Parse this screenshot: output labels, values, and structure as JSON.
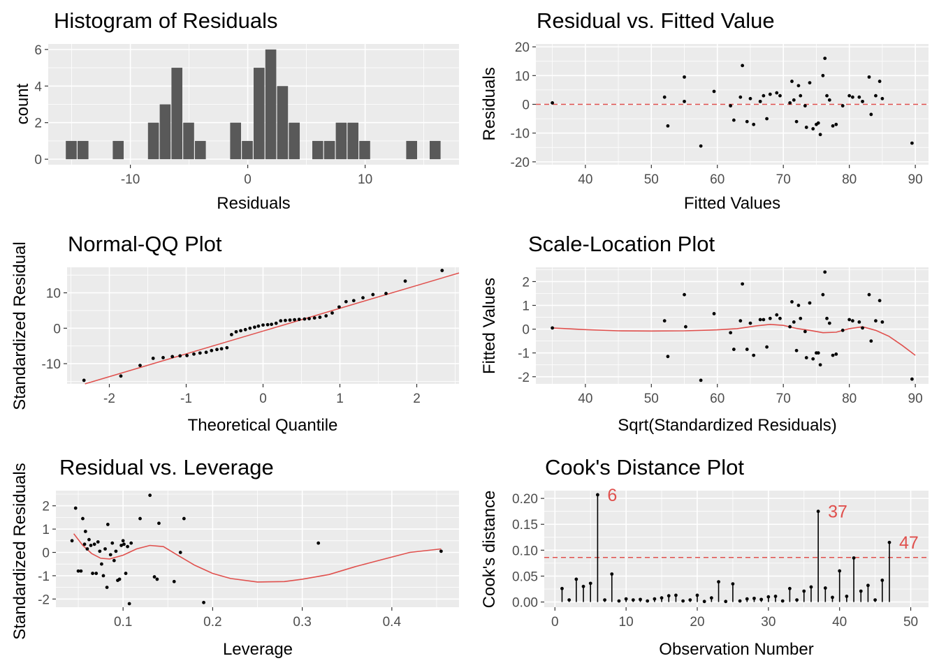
{
  "chart_data": [
    {
      "id": "hist",
      "type": "bar",
      "title": "Histogram of Residuals",
      "xlabel": "Residuals",
      "ylabel": "count",
      "xlim": [
        -17,
        18
      ],
      "ylim": [
        -0.3,
        6.3
      ],
      "xticks": [
        -10,
        0,
        10
      ],
      "yticks": [
        0,
        2,
        4,
        6
      ],
      "bin_width": 1.0,
      "bar_color": "#595959",
      "bins": [
        {
          "x": -15,
          "count": 1
        },
        {
          "x": -14,
          "count": 1
        },
        {
          "x": -11,
          "count": 1
        },
        {
          "x": -8,
          "count": 2
        },
        {
          "x": -7,
          "count": 3
        },
        {
          "x": -6,
          "count": 5
        },
        {
          "x": -5,
          "count": 2
        },
        {
          "x": -4,
          "count": 1
        },
        {
          "x": -1,
          "count": 2
        },
        {
          "x": 0,
          "count": 1
        },
        {
          "x": 1,
          "count": 5
        },
        {
          "x": 2,
          "count": 6
        },
        {
          "x": 3,
          "count": 4
        },
        {
          "x": 4,
          "count": 2
        },
        {
          "x": 6,
          "count": 1
        },
        {
          "x": 7,
          "count": 1
        },
        {
          "x": 8,
          "count": 2
        },
        {
          "x": 9,
          "count": 2
        },
        {
          "x": 10,
          "count": 1
        },
        {
          "x": 14,
          "count": 1
        },
        {
          "x": 16,
          "count": 1
        }
      ]
    },
    {
      "id": "resfit",
      "type": "scatter",
      "title": "Residual vs. Fitted Value",
      "xlabel": "Fitted Values",
      "ylabel": "Residuals",
      "xlim": [
        32.5,
        92
      ],
      "ylim": [
        -21,
        21
      ],
      "xticks": [
        40,
        50,
        60,
        70,
        80,
        90
      ],
      "yticks": [
        -20,
        -10,
        0,
        10,
        20
      ],
      "reference_line": {
        "y": 0,
        "color": "#e0504d",
        "style": "dashed"
      },
      "points": [
        [
          35,
          0.5
        ],
        [
          52,
          2.5
        ],
        [
          52.5,
          -7.5
        ],
        [
          55,
          9.5
        ],
        [
          55,
          1
        ],
        [
          57.5,
          -14.5
        ],
        [
          59.5,
          4.5
        ],
        [
          62,
          -0.5
        ],
        [
          62.5,
          -5.5
        ],
        [
          63.5,
          2.5
        ],
        [
          63.8,
          13.5
        ],
        [
          64.5,
          -6
        ],
        [
          65,
          2
        ],
        [
          65.5,
          -7
        ],
        [
          66.5,
          1
        ],
        [
          67,
          3
        ],
        [
          67.5,
          -5
        ],
        [
          68,
          3.5
        ],
        [
          69,
          4
        ],
        [
          69.5,
          3
        ],
        [
          71,
          0.5
        ],
        [
          71.3,
          8
        ],
        [
          71.6,
          1.5
        ],
        [
          72,
          -6
        ],
        [
          72.3,
          6.5
        ],
        [
          72.6,
          3
        ],
        [
          73.3,
          -0.5
        ],
        [
          73.5,
          -8
        ],
        [
          74,
          7.5
        ],
        [
          74.5,
          -8.5
        ],
        [
          75,
          -7
        ],
        [
          75.3,
          -6.5
        ],
        [
          75.6,
          -10.5
        ],
        [
          76,
          10
        ],
        [
          76.3,
          16
        ],
        [
          76.6,
          3
        ],
        [
          77,
          1.5
        ],
        [
          77.5,
          -7.5
        ],
        [
          78,
          -7
        ],
        [
          79,
          -0.5
        ],
        [
          80,
          3
        ],
        [
          80.5,
          2.5
        ],
        [
          81.5,
          2.5
        ],
        [
          82,
          1
        ],
        [
          83,
          9.5
        ],
        [
          83.3,
          -3.5
        ],
        [
          84,
          3
        ],
        [
          84.6,
          8
        ],
        [
          85,
          2
        ],
        [
          89.5,
          -13.5
        ]
      ]
    },
    {
      "id": "qq",
      "type": "scatter",
      "title": "Normal-QQ Plot",
      "xlabel": "Theoretical Quantile",
      "ylabel": "Standardized Residual",
      "xlim": [
        -2.55,
        2.55
      ],
      "ylim": [
        -15.7,
        17.2
      ],
      "xticks": [
        -2,
        -1,
        0,
        1,
        2
      ],
      "yticks": [
        -10,
        0,
        10
      ],
      "fit_line": {
        "x": [
          -2.55,
          2.55
        ],
        "y": [
          -17.2,
          15.6
        ],
        "color": "#e0504d"
      },
      "points": [
        [
          -2.33,
          -14.7
        ],
        [
          -1.85,
          -13.5
        ],
        [
          -1.6,
          -10.5
        ],
        [
          -1.43,
          -8.5
        ],
        [
          -1.3,
          -8.3
        ],
        [
          -1.18,
          -8.0
        ],
        [
          -1.08,
          -7.8
        ],
        [
          -0.99,
          -7.7
        ],
        [
          -0.9,
          -7.3
        ],
        [
          -0.82,
          -7.0
        ],
        [
          -0.74,
          -6.8
        ],
        [
          -0.67,
          -6.3
        ],
        [
          -0.6,
          -6.0
        ],
        [
          -0.54,
          -5.8
        ],
        [
          -0.47,
          -5.5
        ],
        [
          -0.41,
          -1.8
        ],
        [
          -0.35,
          -1.0
        ],
        [
          -0.29,
          -0.7
        ],
        [
          -0.23,
          -0.4
        ],
        [
          -0.17,
          0.0
        ],
        [
          -0.11,
          0.3
        ],
        [
          -0.06,
          0.6
        ],
        [
          0.0,
          0.9
        ],
        [
          0.06,
          1.0
        ],
        [
          0.11,
          1.1
        ],
        [
          0.17,
          1.4
        ],
        [
          0.23,
          2.1
        ],
        [
          0.29,
          2.2
        ],
        [
          0.35,
          2.3
        ],
        [
          0.41,
          2.4
        ],
        [
          0.47,
          2.5
        ],
        [
          0.54,
          2.6
        ],
        [
          0.6,
          2.7
        ],
        [
          0.67,
          2.9
        ],
        [
          0.74,
          3.1
        ],
        [
          0.82,
          3.5
        ],
        [
          0.9,
          4.3
        ],
        [
          0.99,
          6.0
        ],
        [
          1.08,
          7.5
        ],
        [
          1.18,
          7.8
        ],
        [
          1.3,
          8.6
        ],
        [
          1.43,
          9.5
        ],
        [
          1.6,
          9.8
        ],
        [
          1.85,
          13.3
        ],
        [
          2.33,
          16.3
        ]
      ]
    },
    {
      "id": "scaleloc",
      "type": "scatter",
      "title": "Scale-Location Plot",
      "xlabel": "Sqrt(Standardized Residuals)",
      "ylabel": "Fitted Values",
      "xlim": [
        32.5,
        92
      ],
      "ylim": [
        -2.3,
        2.6
      ],
      "xticks": [
        40,
        50,
        60,
        70,
        80,
        90
      ],
      "yticks": [
        -2,
        -1,
        0,
        1,
        2
      ],
      "smooth_color": "#e0504d",
      "smooth": [
        [
          35,
          0.05
        ],
        [
          40,
          -0.02
        ],
        [
          45,
          -0.07
        ],
        [
          50,
          -0.08
        ],
        [
          55,
          -0.07
        ],
        [
          60,
          -0.03
        ],
        [
          63,
          0.02
        ],
        [
          66,
          0.14
        ],
        [
          68,
          0.2
        ],
        [
          70,
          0.16
        ],
        [
          72,
          0.03
        ],
        [
          74,
          -0.05
        ],
        [
          76,
          -0.15
        ],
        [
          78,
          -0.13
        ],
        [
          80,
          0.02
        ],
        [
          82,
          0.1
        ],
        [
          84,
          -0.05
        ],
        [
          86,
          -0.3
        ],
        [
          88,
          -0.68
        ],
        [
          90,
          -1.1
        ]
      ],
      "points": [
        [
          35,
          0.05
        ],
        [
          52,
          0.35
        ],
        [
          52.5,
          -1.15
        ],
        [
          55,
          1.45
        ],
        [
          55.2,
          0.1
        ],
        [
          57.5,
          -2.15
        ],
        [
          59.5,
          0.65
        ],
        [
          62,
          -0.15
        ],
        [
          62.5,
          -0.85
        ],
        [
          63.5,
          0.35
        ],
        [
          63.8,
          1.9
        ],
        [
          64.5,
          -0.85
        ],
        [
          65,
          0.25
        ],
        [
          65.5,
          -1.1
        ],
        [
          66.5,
          0.4
        ],
        [
          67,
          0.4
        ],
        [
          67.5,
          -0.75
        ],
        [
          68,
          0.45
        ],
        [
          69,
          0.6
        ],
        [
          69.5,
          0.45
        ],
        [
          71,
          0.1
        ],
        [
          71.3,
          1.15
        ],
        [
          71.6,
          0.3
        ],
        [
          72,
          -0.9
        ],
        [
          72.3,
          1.0
        ],
        [
          72.6,
          0.45
        ],
        [
          73.3,
          -0.1
        ],
        [
          73.5,
          -1.2
        ],
        [
          74,
          1.1
        ],
        [
          74.5,
          -1.25
        ],
        [
          75,
          -1.0
        ],
        [
          75.3,
          -1.0
        ],
        [
          75.6,
          -1.5
        ],
        [
          76,
          1.45
        ],
        [
          76.3,
          2.4
        ],
        [
          76.6,
          0.45
        ],
        [
          77,
          0.25
        ],
        [
          77.5,
          -1.1
        ],
        [
          78,
          -1.05
        ],
        [
          79,
          -0.05
        ],
        [
          80,
          0.4
        ],
        [
          80.5,
          0.35
        ],
        [
          81.5,
          0.3
        ],
        [
          82,
          0.05
        ],
        [
          83,
          1.45
        ],
        [
          83.3,
          -0.5
        ],
        [
          84,
          0.35
        ],
        [
          84.6,
          1.2
        ],
        [
          85,
          0.3
        ],
        [
          89.5,
          -2.1
        ]
      ]
    },
    {
      "id": "resleverage",
      "type": "scatter",
      "title": "Residual vs. Leverage",
      "xlabel": "Leverage",
      "ylabel": "Standardized Residuals",
      "xlim": [
        0.025,
        0.475
      ],
      "ylim": [
        -2.35,
        2.65
      ],
      "xticks": [
        0.1,
        0.2,
        0.3,
        0.4
      ],
      "yticks": [
        -2,
        -1,
        0,
        1,
        2
      ],
      "smooth_color": "#e0504d",
      "smooth": [
        [
          0.045,
          0.8
        ],
        [
          0.055,
          0.3
        ],
        [
          0.065,
          -0.05
        ],
        [
          0.075,
          -0.25
        ],
        [
          0.085,
          -0.28
        ],
        [
          0.1,
          -0.12
        ],
        [
          0.115,
          0.15
        ],
        [
          0.13,
          0.3
        ],
        [
          0.145,
          0.25
        ],
        [
          0.16,
          -0.1
        ],
        [
          0.18,
          -0.55
        ],
        [
          0.2,
          -0.9
        ],
        [
          0.22,
          -1.12
        ],
        [
          0.25,
          -1.27
        ],
        [
          0.28,
          -1.25
        ],
        [
          0.3,
          -1.15
        ],
        [
          0.33,
          -0.95
        ],
        [
          0.36,
          -0.6
        ],
        [
          0.39,
          -0.3
        ],
        [
          0.42,
          0.0
        ],
        [
          0.455,
          0.15
        ]
      ],
      "points": [
        [
          0.043,
          0.5
        ],
        [
          0.047,
          1.9
        ],
        [
          0.05,
          -0.8
        ],
        [
          0.053,
          -0.8
        ],
        [
          0.055,
          1.45
        ],
        [
          0.057,
          0.35
        ],
        [
          0.058,
          0.9
        ],
        [
          0.06,
          0.15
        ],
        [
          0.062,
          0.55
        ],
        [
          0.064,
          0.3
        ],
        [
          0.066,
          -0.9
        ],
        [
          0.068,
          0.35
        ],
        [
          0.07,
          -0.9
        ],
        [
          0.072,
          0.45
        ],
        [
          0.074,
          0.05
        ],
        [
          0.076,
          -0.5
        ],
        [
          0.078,
          -1.0
        ],
        [
          0.08,
          0.15
        ],
        [
          0.082,
          -1.5
        ],
        [
          0.083,
          1.2
        ],
        [
          0.086,
          -0.1
        ],
        [
          0.088,
          0.4
        ],
        [
          0.09,
          -0.35
        ],
        [
          0.092,
          0.05
        ],
        [
          0.094,
          -1.2
        ],
        [
          0.096,
          -1.15
        ],
        [
          0.098,
          0.3
        ],
        [
          0.1,
          0.5
        ],
        [
          0.101,
          0.35
        ],
        [
          0.103,
          -0.9
        ],
        [
          0.105,
          0.25
        ],
        [
          0.107,
          -2.2
        ],
        [
          0.109,
          0.4
        ],
        [
          0.119,
          1.45
        ],
        [
          0.13,
          2.45
        ],
        [
          0.135,
          -1.05
        ],
        [
          0.138,
          -1.15
        ],
        [
          0.14,
          1.25
        ],
        [
          0.157,
          -1.25
        ],
        [
          0.164,
          0.0
        ],
        [
          0.168,
          1.45
        ],
        [
          0.19,
          -2.15
        ],
        [
          0.318,
          0.4
        ],
        [
          0.455,
          0.05
        ]
      ]
    },
    {
      "id": "cooks",
      "type": "bar",
      "title": "Cook's Distance Plot",
      "xlabel": "Observation Number",
      "ylabel": "Cook's distance",
      "xlim": [
        -1.5,
        52.5
      ],
      "ylim": [
        -0.01,
        0.215
      ],
      "xticks": [
        0,
        10,
        20,
        30,
        40,
        50
      ],
      "yticks": [
        0.0,
        0.05,
        0.1,
        0.15,
        0.2
      ],
      "ytick_labels": [
        "0.00",
        "0.05",
        "0.10",
        "0.15",
        "0.20"
      ],
      "threshold": {
        "y": 0.086,
        "color": "#e0504d",
        "style": "dashed"
      },
      "annotations": [
        {
          "obs": 6,
          "label": "6"
        },
        {
          "obs": 37,
          "label": "37"
        },
        {
          "obs": 47,
          "label": "47"
        }
      ],
      "values": [
        0.026,
        0.004,
        0.044,
        0.03,
        0.036,
        0.207,
        0.004,
        0.054,
        0.002,
        0.006,
        0.004,
        0.005,
        0.002,
        0.006,
        0.008,
        0.012,
        0.013,
        0.002,
        0.004,
        0.013,
        0.001,
        0.008,
        0.039,
        0.001,
        0.035,
        0.002,
        0.006,
        0.007,
        0.005,
        0.01,
        0.011,
        0.002,
        0.026,
        0.004,
        0.021,
        0.029,
        0.175,
        0.027,
        0.009,
        0.06,
        0.011,
        0.085,
        0.021,
        0.032,
        0.004,
        0.042,
        0.115
      ]
    }
  ]
}
